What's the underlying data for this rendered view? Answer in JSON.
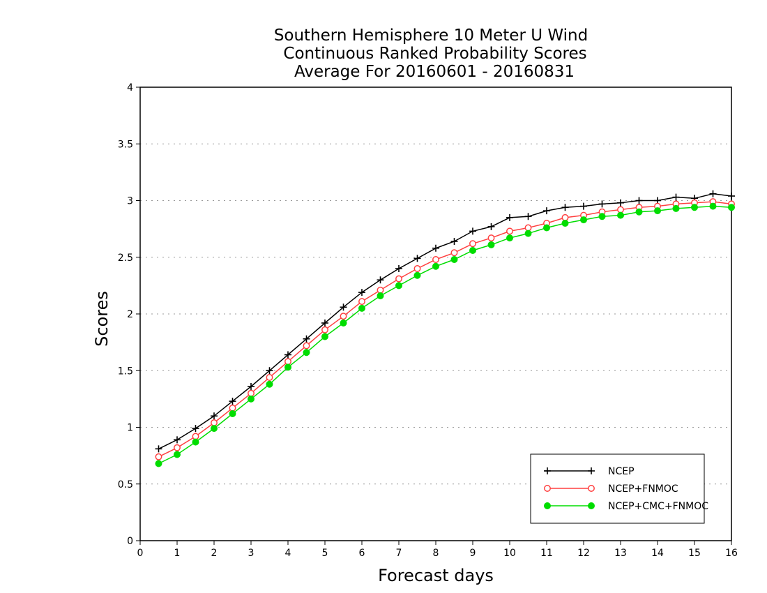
{
  "chart_data": {
    "type": "line",
    "title": [
      "Southern Hemisphere 10 Meter U Wind",
      "Continuous Ranked Probability Scores",
      "Average For 20160601 - 20160831"
    ],
    "xlabel": "Forecast days",
    "ylabel": "Scores",
    "xlim": [
      0,
      16
    ],
    "ylim": [
      0,
      4
    ],
    "xticks": [
      0,
      1,
      2,
      3,
      4,
      5,
      6,
      7,
      8,
      9,
      10,
      11,
      12,
      13,
      14,
      15,
      16
    ],
    "yticks": [
      0,
      0.5,
      1,
      1.5,
      2,
      2.5,
      3,
      3.5,
      4
    ],
    "ytick_labels": [
      "0",
      "0.5",
      "1",
      "1.5",
      "2",
      "2.5",
      "3",
      "3.5",
      "4"
    ],
    "grid": "horizontal dotted",
    "legend_position": "bottom-right",
    "x": [
      0.5,
      1,
      1.5,
      2,
      2.5,
      3,
      3.5,
      4,
      4.5,
      5,
      5.5,
      6,
      6.5,
      7,
      7.5,
      8,
      8.5,
      9,
      9.5,
      10,
      10.5,
      11,
      11.5,
      12,
      12.5,
      13,
      13.5,
      14,
      14.5,
      15,
      15.5,
      16
    ],
    "series": [
      {
        "name": "NCEP",
        "color": "#000000",
        "marker": "plus",
        "values": [
          0.81,
          0.89,
          0.99,
          1.1,
          1.23,
          1.36,
          1.5,
          1.64,
          1.78,
          1.92,
          2.06,
          2.19,
          2.3,
          2.4,
          2.49,
          2.58,
          2.64,
          2.73,
          2.77,
          2.85,
          2.86,
          2.91,
          2.94,
          2.95,
          2.97,
          2.98,
          3.0,
          3.0,
          3.03,
          3.02,
          3.06,
          3.04
        ]
      },
      {
        "name": "NCEP+FNMOC",
        "color": "#ff4040",
        "marker": "open-circle",
        "values": [
          0.74,
          0.82,
          0.92,
          1.04,
          1.17,
          1.3,
          1.44,
          1.58,
          1.72,
          1.86,
          1.98,
          2.11,
          2.21,
          2.31,
          2.4,
          2.48,
          2.54,
          2.62,
          2.67,
          2.73,
          2.76,
          2.8,
          2.85,
          2.87,
          2.9,
          2.92,
          2.94,
          2.95,
          2.97,
          2.98,
          2.99,
          2.97
        ]
      },
      {
        "name": "NCEP+CMC+FNMOC",
        "color": "#00dd00",
        "marker": "filled-circle",
        "values": [
          0.68,
          0.76,
          0.87,
          0.99,
          1.12,
          1.25,
          1.38,
          1.53,
          1.66,
          1.8,
          1.92,
          2.05,
          2.16,
          2.25,
          2.34,
          2.42,
          2.48,
          2.56,
          2.61,
          2.67,
          2.71,
          2.76,
          2.8,
          2.83,
          2.86,
          2.87,
          2.9,
          2.91,
          2.93,
          2.94,
          2.95,
          2.94
        ]
      }
    ]
  }
}
